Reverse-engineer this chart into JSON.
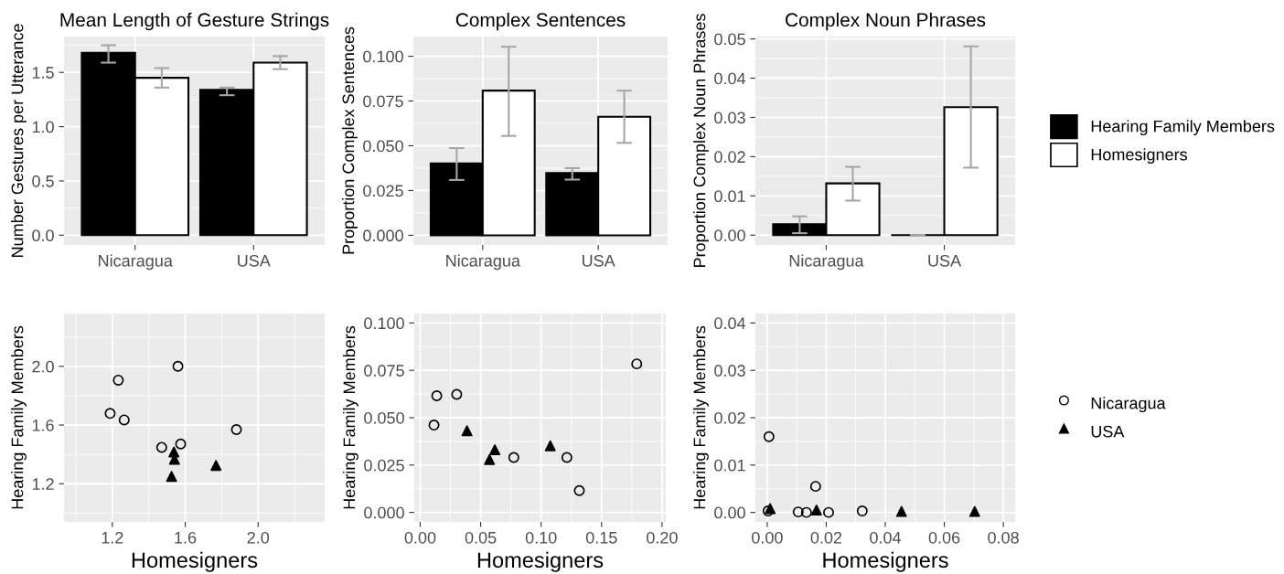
{
  "chart_data": [
    {
      "type": "bar",
      "title": "Mean Length of Gesture Strings",
      "ylabel": "Number Gestures per Utterance",
      "categories": [
        "Nicaragua",
        "USA"
      ],
      "ylim": [
        -0.09,
        1.83
      ],
      "yticks": [
        {
          "value": 0,
          "label": "0.0"
        },
        0.5,
        {
          "value": 1,
          "label": "1.0"
        },
        1.5
      ],
      "grid": true,
      "legend": false,
      "series": [
        {
          "color": "#000000",
          "values": [
            1.68,
            1.34
          ],
          "errors": [
            [
              1.59,
              1.75
            ],
            [
              1.29,
              1.36
            ]
          ]
        },
        {
          "color": "#ffffff",
          "values": [
            1.45,
            1.59
          ],
          "errors": [
            [
              1.36,
              1.54
            ],
            [
              1.53,
              1.65
            ]
          ]
        }
      ]
    },
    {
      "type": "bar",
      "title": "Complex Sentences",
      "ylabel": "Proportion Complex Sentences",
      "categories": [
        "Nicaragua",
        "USA"
      ],
      "ylim": [
        -0.0054,
        0.111
      ],
      "yticks": [
        {
          "value": 0,
          "label": "0.000"
        },
        {
          "value": 0.025,
          "label": "0.025"
        },
        {
          "value": 0.05,
          "label": "0.050"
        },
        {
          "value": 0.075,
          "label": "0.075"
        },
        {
          "value": 0.1,
          "label": "0.100"
        }
      ],
      "grid": true,
      "legend": false,
      "series": [
        {
          "color": "#000000",
          "values": [
            0.0402,
            0.0348
          ],
          "errors": [
            [
              0.0309,
              0.0487
            ],
            [
              0.0311,
              0.0375
            ]
          ]
        },
        {
          "color": "#ffffff",
          "values": [
            0.0808,
            0.0662
          ],
          "errors": [
            [
              0.0555,
              0.1053
            ],
            [
              0.0516,
              0.0808
            ]
          ]
        }
      ]
    },
    {
      "type": "bar",
      "title": "Complex Noun Phrases",
      "ylabel": "Proportion Complex Noun Phrases",
      "categories": [
        "Nicaragua",
        "USA"
      ],
      "ylim": [
        -0.0025,
        0.0506
      ],
      "yticks": [
        {
          "value": 0,
          "label": "0.00"
        },
        {
          "value": 0.01,
          "label": "0.01"
        },
        {
          "value": 0.02,
          "label": "0.02"
        },
        {
          "value": 0.03,
          "label": "0.03"
        },
        {
          "value": 0.04,
          "label": "0.04"
        },
        {
          "value": 0.05,
          "label": "0.05"
        }
      ],
      "grid": true,
      "legend": "right",
      "series": [
        {
          "name": "Hearing Family Members",
          "color": "#000000",
          "values": [
            0.0028,
            0
          ],
          "errors": [
            [
              0.0005,
              0.0048
            ],
            [
              0,
              0
            ]
          ]
        },
        {
          "name": "Homesigners",
          "color": "#ffffff",
          "values": [
            0.0132,
            0.0326
          ],
          "errors": [
            [
              0.0088,
              0.0174
            ],
            [
              0.0172,
              0.0481
            ]
          ]
        }
      ]
    },
    {
      "type": "scatter",
      "xlabel": "Homesigners",
      "ylabel": "Hearing Family Members",
      "xlim": [
        0.935,
        2.365
      ],
      "ylim": [
        0.94,
        2.36
      ],
      "xticks": [
        1.2,
        1.6,
        {
          "value": 2,
          "label": "2.0"
        }
      ],
      "yticks": [
        1.2,
        1.6,
        {
          "value": 2,
          "label": "2.0"
        }
      ],
      "grid": true,
      "legend": false,
      "series": [
        {
          "color": "#000000",
          "marker": "circle",
          "x": [
            1.233,
            1.56,
            1.188,
            1.265,
            1.881,
            1.471,
            1.575
          ],
          "values": [
            1.906,
            2.0,
            1.679,
            1.635,
            1.569,
            1.448,
            1.471
          ]
        },
        {
          "color": "#000000",
          "marker": "triangle",
          "x": [
            1.538,
            1.541,
            1.525,
            1.769
          ],
          "values": [
            1.417,
            1.367,
            1.25,
            1.325
          ]
        }
      ]
    },
    {
      "type": "scatter",
      "xlabel": "Homesigners",
      "ylabel": "Hearing Family Members",
      "xlim": [
        -0.0049,
        0.2031
      ],
      "ylim": [
        -0.005,
        0.105
      ],
      "xticks": [
        {
          "value": 0,
          "label": "0.00"
        },
        0.05,
        {
          "value": 0.1,
          "label": "0.10"
        },
        0.15,
        {
          "value": 0.2,
          "label": "0.20"
        }
      ],
      "yticks": [
        {
          "value": 0,
          "label": "0.000"
        },
        {
          "value": 0.025,
          "label": "0.025"
        },
        {
          "value": 0.05,
          "label": "0.050"
        },
        {
          "value": 0.075,
          "label": "0.075"
        },
        {
          "value": 0.1,
          "label": "0.100"
        }
      ],
      "grid": true,
      "legend": false,
      "series": [
        {
          "color": "#000000",
          "marker": "circle",
          "x": [
            0.0137,
            0.0302,
            0.0114,
            0.0774,
            0.1213,
            0.1316,
            0.1791
          ],
          "values": [
            0.0616,
            0.0623,
            0.0461,
            0.029,
            0.029,
            0.0115,
            0.0784
          ]
        },
        {
          "color": "#000000",
          "marker": "triangle",
          "x": [
            0.0387,
            0.0617,
            0.0573,
            0.1076
          ],
          "values": [
            0.0431,
            0.0331,
            0.0279,
            0.0352
          ]
        }
      ]
    },
    {
      "type": "scatter",
      "xlabel": "Homesigners",
      "ylabel": "Hearing Family Members",
      "xlim": [
        -0.004,
        0.084
      ],
      "ylim": [
        -0.002,
        0.042
      ],
      "xticks": [
        {
          "value": 0,
          "label": "0.00"
        },
        0.02,
        0.04,
        0.06,
        0.08
      ],
      "yticks": [
        {
          "value": 0,
          "label": "0.00"
        },
        0.01,
        0.02,
        0.03,
        0.04
      ],
      "grid": true,
      "legend": "right",
      "series": [
        {
          "name": "Nicaragua",
          "color": "#000000",
          "marker": "circle",
          "x": [
            0.0006,
            0.0164,
            0.0003,
            0.0105,
            0.0133,
            0.0208,
            0.0322
          ],
          "values": [
            0.016,
            0.0055,
            0.0003,
            0.0001,
            0,
            0,
            0.0003
          ]
        },
        {
          "name": "USA",
          "color": "#000000",
          "marker": "triangle",
          "x": [
            0.001,
            0.0167,
            0.0455,
            0.0703
          ],
          "values": [
            0.0008,
            0.0005,
            0.0002,
            0.0002
          ]
        }
      ]
    }
  ]
}
